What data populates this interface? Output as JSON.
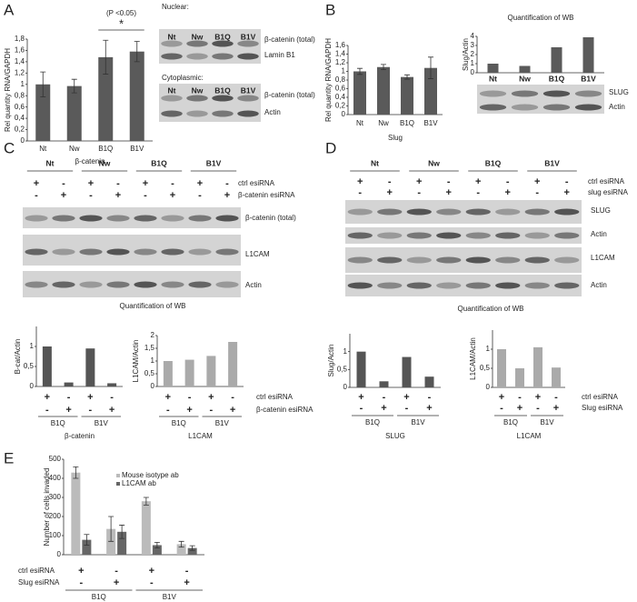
{
  "panels": [
    "A",
    "B",
    "C",
    "D",
    "E"
  ],
  "blots": [
    {
      "title": "Nuclear:",
      "lanes": [
        "Nt",
        "Nw",
        "B1Q",
        "B1V"
      ],
      "rows": [
        "β-catenin (total)",
        "Lamin B1"
      ]
    },
    {
      "title": "Cytoplasmic:",
      "lanes": [
        "Nt",
        "Nw",
        "B1Q",
        "B1V"
      ],
      "rows": [
        "β-catenin (total)",
        "Actin"
      ]
    },
    {
      "rows": [
        "SLUG",
        "Actin"
      ]
    },
    {
      "lanes": [
        "Nt",
        "Nw",
        "B1Q",
        "B1V"
      ],
      "conditions": [
        {
          "name": "ctrl esiRNA",
          "signs": [
            "+",
            "-",
            "+",
            "-",
            "+",
            "-",
            "+",
            "-"
          ]
        },
        {
          "name": "β-catenin esiRNA",
          "signs": [
            "-",
            "+",
            "-",
            "+",
            "-",
            "+",
            "-",
            "+"
          ]
        }
      ],
      "rows": [
        "β-catenin (total)",
        "L1CAM",
        "Actin"
      ],
      "caption": "Quantification of WB"
    },
    {
      "lanes": [
        "Nt",
        "Nw",
        "B1Q",
        "B1V"
      ],
      "conditions": [
        {
          "name": "ctrl esiRNA",
          "signs": [
            "+",
            "-",
            "+",
            "-",
            "+",
            "-",
            "+",
            "-"
          ]
        },
        {
          "name": "slug esiRNA",
          "signs": [
            "-",
            "+",
            "-",
            "+",
            "-",
            "+",
            "-",
            "+"
          ]
        }
      ],
      "rows": [
        "SLUG",
        "Actin",
        "L1CAM",
        "Actin"
      ],
      "caption": "Quantification of WB"
    }
  ],
  "chart_data": [
    {
      "type": "bar",
      "ylabel": "Rel quantity RNA/GAPDH",
      "xlabel": "β-catenin",
      "categories": [
        "Nt",
        "Nw",
        "B1Q",
        "B1V"
      ],
      "values": [
        1.0,
        0.97,
        1.48,
        1.58
      ],
      "errors": [
        0.22,
        0.12,
        0.3,
        0.18
      ],
      "color": "#5a5a5a",
      "ylim": [
        0,
        1.8
      ],
      "yticks": [
        0,
        {
          "value": 0.2,
          "label": "0,2"
        },
        {
          "value": 0.4,
          "label": "0,4"
        },
        {
          "value": 0.6,
          "label": "0,6"
        },
        {
          "value": 0.8,
          "label": "0,8"
        },
        1,
        {
          "value": 1.2,
          "label": "1,2"
        },
        {
          "value": 1.4,
          "label": "1,4"
        },
        {
          "value": 1.6,
          "label": "1,6"
        },
        {
          "value": 1.8,
          "label": "1,8"
        }
      ],
      "annotation": "(P <0.05)",
      "significance": "*"
    },
    {
      "type": "bar",
      "ylabel": "Rel quantity RNA/GAPDH",
      "xlabel": "Slug",
      "categories": [
        "Nt",
        "Nw",
        "B1Q",
        "B1V"
      ],
      "values": [
        1.0,
        1.1,
        0.87,
        1.08
      ],
      "errors": [
        0.07,
        0.06,
        0.05,
        0.25
      ],
      "color": "#5a5a5a",
      "ylim": [
        0,
        1.6
      ],
      "yticks": [
        0,
        {
          "value": 0.2,
          "label": "0,2"
        },
        {
          "value": 0.4,
          "label": "0,4"
        },
        {
          "value": 0.6,
          "label": "0,6"
        },
        {
          "value": 0.8,
          "label": "0,8"
        },
        1,
        {
          "value": 1.2,
          "label": "1,2"
        },
        {
          "value": 1.4,
          "label": "1,4"
        },
        {
          "value": 1.6,
          "label": "1,6"
        }
      ]
    },
    {
      "type": "bar",
      "title": "Quantification of WB",
      "ylabel": "Slug/Actin",
      "categories": [
        "Nt",
        "Nw",
        "B1Q",
        "B1V"
      ],
      "values": [
        1.0,
        0.75,
        2.8,
        3.9
      ],
      "color": "#5a5a5a",
      "ylim": [
        0,
        4
      ],
      "yticks": [
        0,
        1,
        2,
        3,
        4
      ]
    },
    {
      "type": "bar",
      "ylabel": "B-cat/Actin",
      "xlabel": "β-catenin",
      "values": [
        1.0,
        0.1,
        0.95,
        0.08
      ],
      "color": "#555555",
      "ylim": [
        0,
        1.5
      ],
      "yticks": [
        0,
        {
          "value": 0.5,
          "label": "0,5"
        },
        1
      ],
      "conditions": [
        {
          "signs": [
            "+",
            "-",
            "+",
            "-"
          ]
        },
        {
          "signs": [
            "-",
            "+",
            "-",
            "+"
          ]
        }
      ],
      "groups": [
        "B1Q",
        "B1V"
      ]
    },
    {
      "type": "bar",
      "ylabel": "L1CAM/Actin",
      "xlabel": "L1CAM",
      "values": [
        1.0,
        1.05,
        1.2,
        1.75
      ],
      "color": "#aaaaaa",
      "ylim": [
        0,
        2
      ],
      "yticks": [
        0,
        {
          "value": 0.5,
          "label": "0,5"
        },
        1,
        {
          "value": 1.5,
          "label": "1,5"
        },
        2
      ],
      "conditions": [
        {
          "name": "ctrl esiRNA",
          "signs": [
            "+",
            "-",
            "+",
            "-"
          ]
        },
        {
          "name": "β-catenin esiRNA",
          "signs": [
            "-",
            "+",
            "-",
            "+"
          ]
        }
      ],
      "groups": [
        "B1Q",
        "B1V"
      ]
    },
    {
      "type": "bar",
      "ylabel": "Slug/Actin",
      "xlabel": "SLUG",
      "values": [
        1.0,
        0.17,
        0.85,
        0.3
      ],
      "color": "#555555",
      "ylim": [
        0,
        1.5
      ],
      "yticks": [
        0,
        {
          "value": 0.5,
          "label": "0,5"
        },
        1
      ],
      "conditions": [
        {
          "signs": [
            "+",
            "-",
            "+",
            "-"
          ]
        },
        {
          "signs": [
            "-",
            "+",
            "-",
            "+"
          ]
        }
      ],
      "groups": [
        "B1Q",
        "B1V"
      ]
    },
    {
      "type": "bar",
      "ylabel": "L1CAM/Actin",
      "xlabel": "L1CAM",
      "values": [
        1.0,
        0.5,
        1.05,
        0.52
      ],
      "color": "#aaaaaa",
      "ylim": [
        0,
        1.5
      ],
      "yticks": [
        0,
        {
          "value": 0.5,
          "label": "0,5"
        },
        1
      ],
      "conditions": [
        {
          "name": "ctrl esiRNA",
          "signs": [
            "+",
            "-",
            "+",
            "-"
          ]
        },
        {
          "name": "Slug esiRNA",
          "signs": [
            "-",
            "+",
            "-",
            "+"
          ]
        }
      ],
      "groups": [
        "B1Q",
        "B1V"
      ]
    },
    {
      "type": "bar",
      "ylabel": "Number of cells invaded",
      "series": [
        {
          "name": "Mouse isotype ab",
          "color": "#bbbbbb",
          "values": [
            430,
            135,
            280,
            55
          ],
          "errors": [
            30,
            65,
            20,
            15
          ]
        },
        {
          "name": "L1CAM ab",
          "color": "#666666",
          "values": [
            78,
            120,
            50,
            35
          ],
          "errors": [
            28,
            35,
            15,
            12
          ]
        }
      ],
      "ylim": [
        0,
        500
      ],
      "yticks": [
        0,
        100,
        200,
        300,
        400,
        500
      ],
      "legend": "top-right",
      "conditions": [
        {
          "name": "ctrl esiRNA",
          "signs": [
            "+",
            "-",
            "+",
            "-"
          ]
        },
        {
          "name": "Slug esiRNA",
          "signs": [
            "-",
            "+",
            "-",
            "+"
          ]
        }
      ],
      "groups": [
        "B1Q",
        "B1V"
      ]
    }
  ]
}
